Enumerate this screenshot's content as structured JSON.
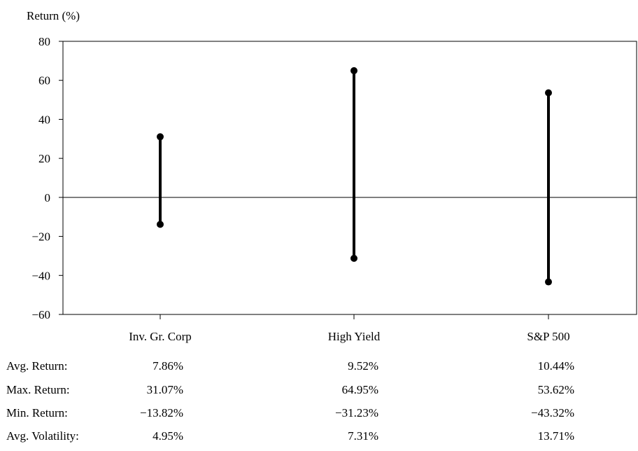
{
  "chart_data": {
    "type": "range",
    "ylabel": "Return (%)",
    "ylim": [
      -60,
      80
    ],
    "yticks": [
      "80",
      "60",
      "40",
      "20",
      "0",
      "−20",
      "−40",
      "−60"
    ],
    "yticks_values": [
      80,
      60,
      40,
      20,
      0,
      -20,
      -40,
      -60
    ],
    "categories": [
      "Inv. Gr. Corp",
      "High Yield",
      "S&P 500"
    ],
    "max": [
      31.07,
      64.95,
      53.62
    ],
    "min": [
      -13.82,
      -31.23,
      -43.32
    ],
    "grid": false,
    "zero_line": true
  },
  "stats_table": {
    "rows": [
      {
        "label": "Avg. Return:",
        "values": [
          "7.86%",
          "9.52%",
          "10.44%"
        ]
      },
      {
        "label": "Max. Return:",
        "values": [
          "31.07%",
          "64.95%",
          "53.62%"
        ]
      },
      {
        "label": "Min. Return:",
        "values": [
          "−13.82%",
          "−31.23%",
          "−43.32%"
        ]
      },
      {
        "label": "Avg. Volatility:",
        "values": [
          "4.95%",
          "7.31%",
          "13.71%"
        ]
      }
    ]
  }
}
